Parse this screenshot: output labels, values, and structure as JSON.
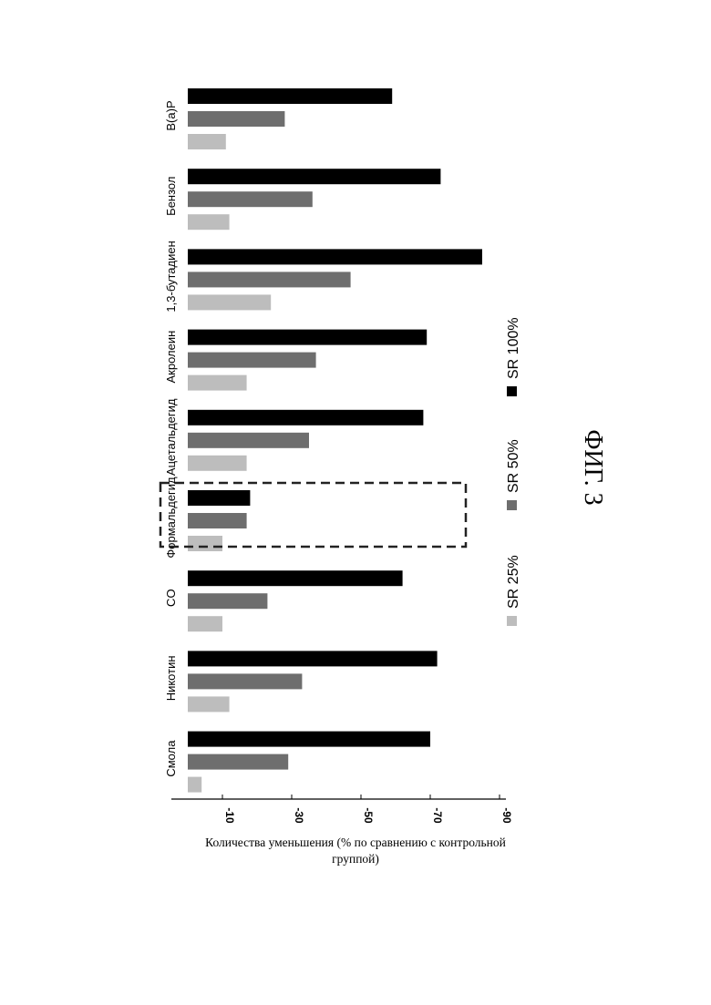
{
  "figure_label": "ФИГ. 3",
  "chart_data": {
    "type": "bar",
    "orientation": "horizontal",
    "categories": [
      "B(a)P",
      "Бензол",
      "1,3-бутадиен",
      "Акролеин",
      "Ацетальдегид",
      "Формальдегид",
      "CO",
      "Никотин",
      "Смола"
    ],
    "series": [
      {
        "name": "SR 100%",
        "color": "#000000",
        "values": [
          -59,
          -73,
          -85,
          -69,
          -68,
          -18,
          -62,
          -72,
          -70
        ]
      },
      {
        "name": "SR 50%",
        "color": "#6e6e6e",
        "values": [
          -28,
          -36,
          -47,
          -37,
          -35,
          -17,
          -23,
          -33,
          -29
        ]
      },
      {
        "name": "SR 25%",
        "color": "#bdbdbd",
        "values": [
          -11,
          -12,
          -24,
          -17,
          -17,
          -10,
          -10,
          -12,
          -4
        ]
      }
    ],
    "xlim": [
      0,
      -90
    ],
    "ticks": [
      -10,
      -30,
      -50,
      -70,
      -90
    ],
    "tick_labels": [
      "-10",
      "-30",
      "-50",
      "-70",
      "-90"
    ],
    "xlabel": "Количества уменьшения (% по сравнению с контрольной группой)",
    "xlabel_lines": [
      "Количества уменьшения (% по сравнению с контрольной",
      "группой)"
    ],
    "legend_position": "right",
    "grid": false,
    "highlighted_category": "Формальдегид"
  }
}
